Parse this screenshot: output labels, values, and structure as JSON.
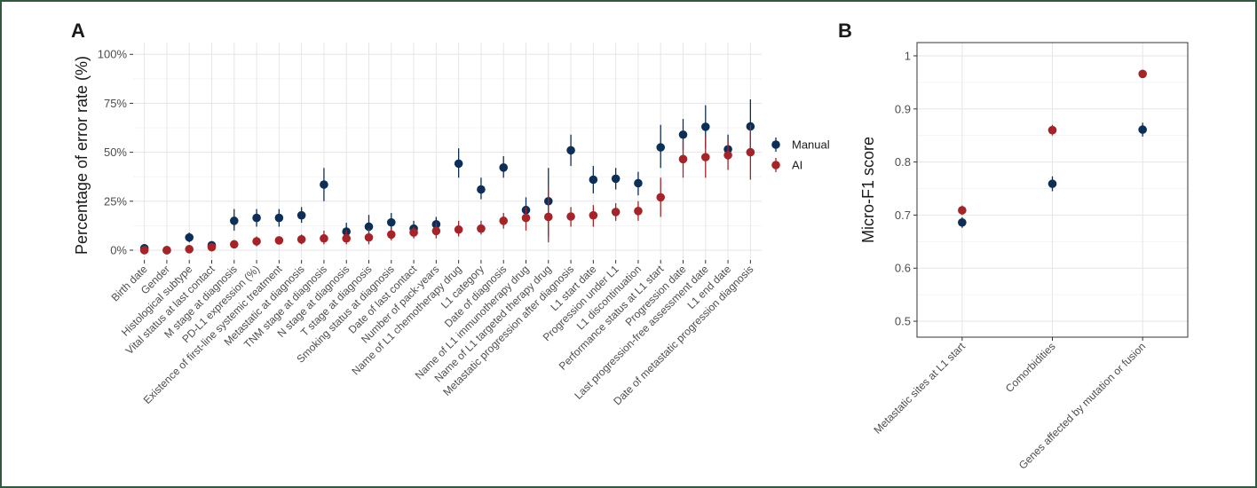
{
  "chart_data": [
    {
      "panel": "A",
      "type": "scatter",
      "ylabel": "Percentage of error rate (%)",
      "ylim": [
        0,
        100
      ],
      "yticks": [
        0,
        25,
        50,
        75,
        100
      ],
      "ytick_labels": [
        "0%",
        "25%",
        "50%",
        "75%",
        "100%"
      ],
      "grid": true,
      "legend": "right",
      "categories": [
        "Birth date",
        "Gender",
        "Histological subtype",
        "Vital status at last contact",
        "M stage at diagnosis",
        "PD-L1 expression (%)",
        "Existence of first-line systemic treatment",
        "Metastatic at diagnosis",
        "TNM stage at diagnosis",
        "N stage at diagnosis",
        "T stage at diagnosis",
        "Smoking status at diagnosis",
        "Date of last contact",
        "Number of pack-years",
        "Name of L1 chemotherapy drug",
        "L1 category",
        "Date of diagnosis",
        "Name of L1 immunotherapy drug",
        "Name of L1 targeted therapy drug",
        "Metastatic progression after diagnosis",
        "L1 start date",
        "Progression under L1",
        "L1 discontinuation",
        "Performance status at L1 start",
        "Progression date",
        "Last progression-free assessment date",
        "L1 end date",
        "Date of metastatic progression diagnosis"
      ],
      "series": [
        {
          "name": "Manual",
          "color": "#0d2f57",
          "values": [
            1,
            0,
            6.5,
            2.5,
            15,
            16.5,
            16.5,
            17.8,
            33.5,
            9.5,
            12,
            14.2,
            11,
            13.2,
            44.2,
            31,
            42.2,
            20.5,
            25,
            51,
            36,
            36.5,
            34.2,
            52.5,
            59,
            63,
            51.5,
            63.2
          ],
          "lower": [
            0,
            0,
            4,
            1,
            10,
            12,
            12,
            14,
            25,
            5,
            7,
            10,
            8,
            10,
            37,
            26,
            37,
            14,
            7,
            43,
            29,
            31,
            28,
            42,
            51,
            52,
            46,
            51
          ],
          "upper": [
            2,
            0,
            9,
            4,
            21,
            21,
            21,
            22,
            42,
            14,
            18,
            19,
            15,
            17,
            52,
            37,
            48,
            27,
            42,
            59,
            43,
            42,
            40,
            64,
            67,
            74,
            59,
            77
          ]
        },
        {
          "name": "AI",
          "color": "#a3252a",
          "values": [
            0,
            0,
            0.5,
            1.5,
            3,
            4.5,
            5,
            5.5,
            6,
            6,
            6.5,
            8,
            9,
            9.8,
            10.5,
            11,
            15,
            16.5,
            17,
            17.2,
            17.8,
            19.5,
            20,
            27,
            46.5,
            47.5,
            48.5,
            50
          ],
          "lower": [
            0,
            0,
            0,
            0.5,
            1,
            2,
            3,
            3,
            3,
            3,
            3,
            5,
            6,
            6,
            7,
            8,
            11,
            10,
            4,
            12,
            12,
            15,
            15,
            17,
            37,
            37,
            41,
            36
          ],
          "upper": [
            0,
            0,
            2,
            3,
            5,
            7,
            7,
            8,
            10,
            10,
            11,
            11,
            12,
            14,
            15,
            15,
            19,
            22,
            32,
            22,
            23,
            24,
            25,
            37,
            56,
            58,
            56,
            64
          ]
        }
      ],
      "legend_labels": [
        "Manual",
        "AI"
      ]
    },
    {
      "panel": "B",
      "type": "scatter",
      "ylabel": "Micro-F1 score",
      "ylim": [
        0.47,
        1.025
      ],
      "yticks": [
        0.5,
        0.6,
        0.7,
        0.8,
        0.9,
        1
      ],
      "ytick_labels": [
        "0.5",
        "0.6",
        "0.7",
        "0.8",
        "0.9",
        "1"
      ],
      "grid": true,
      "categories": [
        "Metastatic sites at L1 start",
        "Comorbidities",
        "Genes affected by mutation or fusion"
      ],
      "series": [
        {
          "name": "Manual",
          "color": "#0d2f57",
          "values": [
            0.686,
            0.759,
            0.861
          ],
          "lower": [
            0.676,
            0.745,
            0.848
          ],
          "upper": [
            0.696,
            0.773,
            0.874
          ]
        },
        {
          "name": "AI",
          "color": "#a3252a",
          "values": [
            0.709,
            0.86,
            0.966
          ],
          "lower": [
            0.7,
            0.85,
            0.962
          ],
          "upper": [
            0.718,
            0.87,
            0.97
          ]
        }
      ]
    }
  ]
}
